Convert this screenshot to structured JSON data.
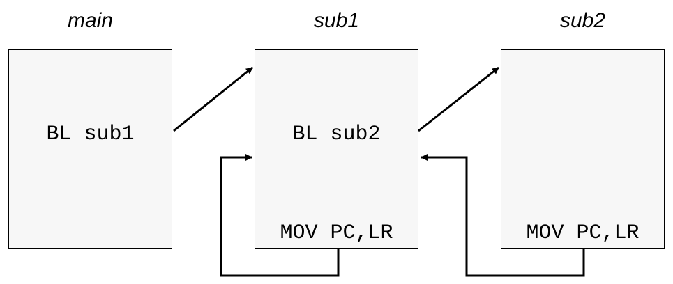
{
  "functions": [
    {
      "id": "main",
      "title": "main",
      "call": "BL sub1",
      "ret": ""
    },
    {
      "id": "sub1",
      "title": "sub1",
      "call": "BL sub2",
      "ret": "MOV PC,LR"
    },
    {
      "id": "sub2",
      "title": "sub2",
      "call": "",
      "ret": "MOV PC,LR"
    }
  ],
  "colors": {
    "box_fill": "#f7f7f7",
    "line": "#000000"
  }
}
